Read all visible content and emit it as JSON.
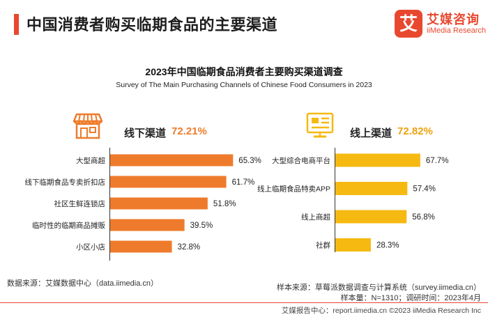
{
  "header": {
    "title": "中国消费者购买临期食品的主要渠道",
    "logo_mark": "艾",
    "logo_cn": "艾媒咨询",
    "logo_en": "iiMedia Research"
  },
  "colors": {
    "accent": "#e8482f",
    "offline_bar": "#ee7b2b",
    "online_bar": "#f5b911",
    "offline_pct": "#ee7b2b",
    "online_pct": "#f0a20c"
  },
  "chart_data": [
    {
      "type": "bar",
      "orientation": "horizontal",
      "title": "2023年中国临期食品消费者主要购买渠道调查",
      "subtitle": "Survey of The Main Purchasing Channels of Chinese Food Consumers in 2023",
      "group_label": "线下渠道",
      "group_value": "72.21%",
      "categories": [
        "大型商超",
        "线下临期食品专卖折扣店",
        "社区生鲜连锁店",
        "临时性的临期商品摊贩",
        "小区小店"
      ],
      "values": [
        65.3,
        61.7,
        51.8,
        39.5,
        32.8
      ],
      "value_labels": [
        "65.3%",
        "61.7%",
        "51.8%",
        "39.5%",
        "32.8%"
      ],
      "unit": "%"
    },
    {
      "type": "bar",
      "orientation": "horizontal",
      "group_label": "线上渠道",
      "group_value": "72.82%",
      "categories": [
        "大型综合电商平台",
        "线上临期食品特卖APP",
        "线上商超",
        "社群"
      ],
      "values": [
        67.7,
        57.4,
        56.8,
        28.3
      ],
      "value_labels": [
        "67.7%",
        "57.4%",
        "56.8%",
        "28.3%"
      ],
      "unit": "%"
    }
  ],
  "footer": {
    "sample_source": "样本来源：草莓派数据调查与计算系统（survey.iimedia.cn）",
    "sample_size": "样本量：N=1310；调研时间：2023年4月",
    "data_source": "数据来源：艾媒数据中心（data.iimedia.cn）",
    "report": "艾媒报告中心：report.iimedia.cn  ©2023  iiMedia Research  Inc"
  }
}
